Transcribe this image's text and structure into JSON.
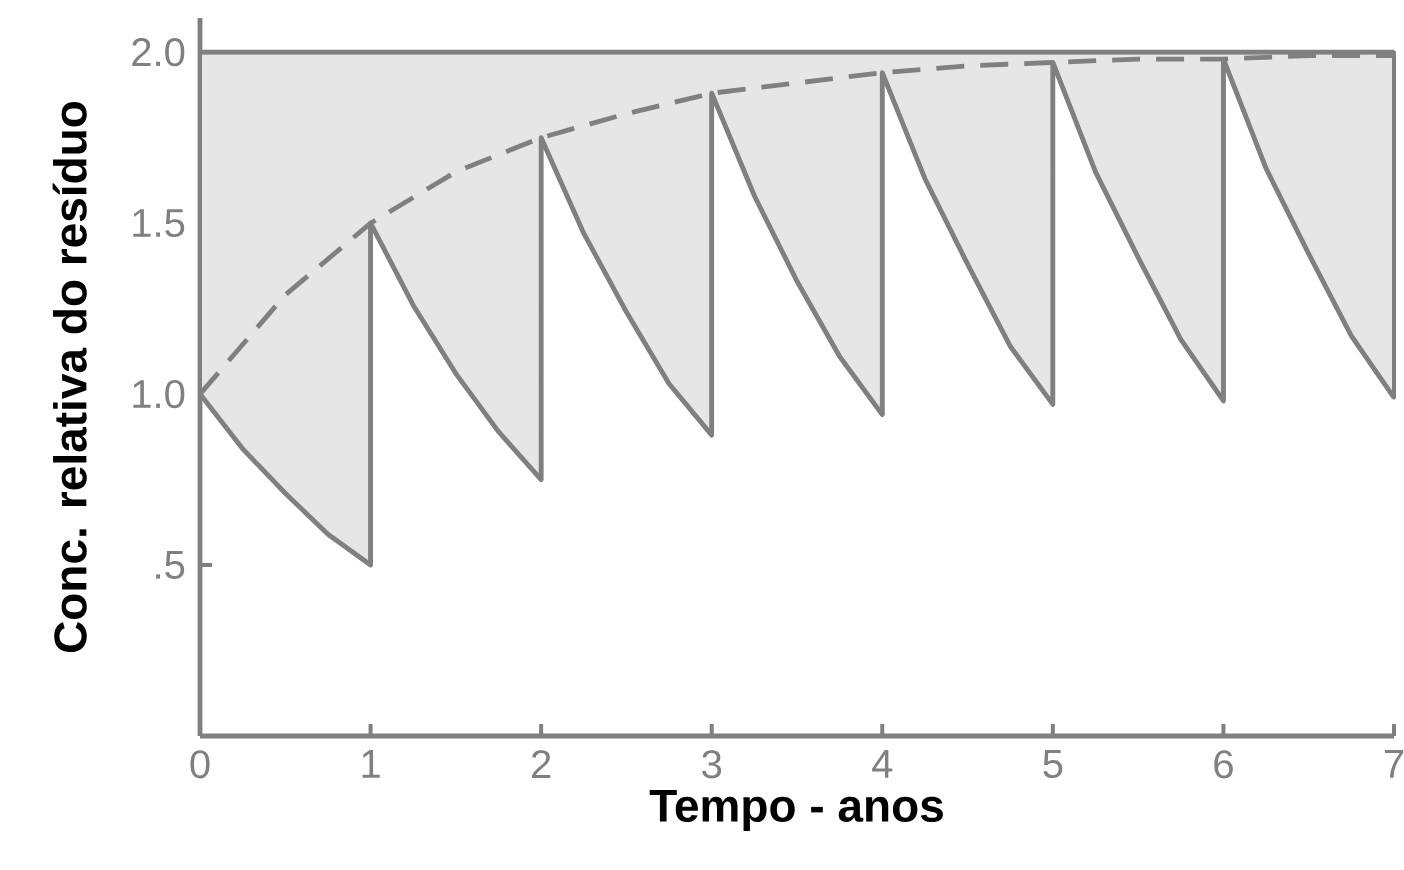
{
  "chart_data": {
    "type": "line",
    "xlabel": "Tempo - anos",
    "ylabel": "Conc. relativa do resíduo",
    "xlim": [
      0,
      7
    ],
    "ylim": [
      0,
      2.1
    ],
    "xticks": [
      0,
      1,
      2,
      3,
      4,
      5,
      6,
      7
    ],
    "yticks": [
      {
        "value": 0.5,
        "label": ".5"
      },
      {
        "value": 1,
        "label": "1.0"
      },
      {
        "value": 1.5,
        "label": "1.5"
      },
      {
        "value": 2,
        "label": "2.0"
      }
    ],
    "ref_lines": [
      {
        "axis": "y",
        "value": 2,
        "label": null,
        "color": "#808080"
      }
    ],
    "series": [
      {
        "color": "#808080",
        "line_style": "solid",
        "x": [
          0,
          0.25,
          0.5,
          0.75,
          1,
          1,
          1.25,
          1.5,
          1.75,
          2,
          2,
          2.25,
          2.5,
          2.75,
          3,
          3,
          3.25,
          3.5,
          3.75,
          4,
          4,
          4.25,
          4.5,
          4.75,
          5,
          5,
          5.25,
          5.5,
          5.75,
          6,
          6,
          6.25,
          6.5,
          6.75,
          7
        ],
        "values": [
          1,
          0.84,
          0.71,
          0.59,
          0.5,
          1.5,
          1.26,
          1.06,
          0.89,
          0.75,
          1.75,
          1.47,
          1.24,
          1.03,
          0.88,
          1.88,
          1.58,
          1.33,
          1.11,
          0.94,
          1.94,
          1.63,
          1.38,
          1.14,
          0.97,
          1.97,
          1.65,
          1.4,
          1.16,
          0.98,
          1.98,
          1.66,
          1.41,
          1.17,
          0.99
        ],
        "lower": [
          1,
          0.84,
          0.71,
          0.59,
          0.5,
          1.5,
          1.26,
          1.06,
          0.89,
          0.75,
          1.75,
          1.47,
          1.24,
          1.03,
          0.88,
          1.88,
          1.58,
          1.33,
          1.11,
          0.94,
          1.94,
          1.63,
          1.38,
          1.14,
          0.97,
          1.97,
          1.65,
          1.4,
          1.16,
          0.98,
          1.98,
          1.66,
          1.41,
          1.17,
          0.99
        ],
        "upper": [
          2,
          2,
          2,
          2,
          2,
          2,
          2,
          2,
          2,
          2,
          2,
          2,
          2,
          2,
          2,
          2,
          2,
          2,
          2,
          2,
          2,
          2,
          2,
          2,
          2,
          2,
          2,
          2,
          2,
          2,
          2,
          2,
          2,
          2,
          2
        ]
      },
      {
        "color": "#808080",
        "line_style": "dashed",
        "x": [
          0,
          0.5,
          1,
          1.5,
          2,
          2.5,
          3,
          3.5,
          4,
          4.5,
          5,
          5.5,
          6,
          6.5,
          7
        ],
        "values": [
          1,
          1.29,
          1.5,
          1.65,
          1.75,
          1.82,
          1.88,
          1.91,
          1.94,
          1.96,
          1.97,
          1.98,
          1.98,
          1.99,
          1.99
        ]
      }
    ]
  }
}
